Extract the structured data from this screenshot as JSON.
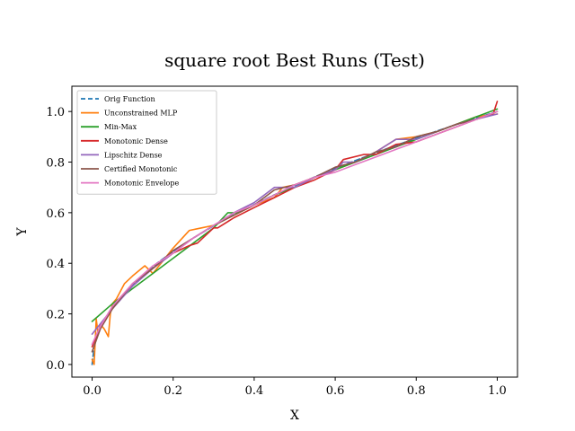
{
  "chart_data": {
    "type": "line",
    "title": "square root Best Runs (Test)",
    "xlabel": "X",
    "ylabel": "Y",
    "xlim": [
      -0.05,
      1.05
    ],
    "ylim": [
      -0.05,
      1.1
    ],
    "xticks": [
      0.0,
      0.2,
      0.4,
      0.6,
      0.8,
      1.0
    ],
    "yticks": [
      0.0,
      0.2,
      0.4,
      0.6,
      0.8,
      1.0
    ],
    "xtick_labels": [
      "0.0",
      "0.2",
      "0.4",
      "0.6",
      "0.8",
      "1.0"
    ],
    "ytick_labels": [
      "0.0",
      "0.2",
      "0.4",
      "0.6",
      "0.8",
      "1.0"
    ],
    "grid": false,
    "legend_position": "upper-left",
    "series": [
      {
        "name": "Orig Function",
        "color": "#1f77b4",
        "dashed": true,
        "x": [
          0,
          0.005,
          0.01,
          0.02,
          0.03,
          0.04,
          0.06,
          0.08,
          0.1,
          0.13,
          0.16,
          0.2,
          0.25,
          0.3,
          0.35,
          0.4,
          0.45,
          0.5,
          0.55,
          0.6,
          0.65,
          0.7,
          0.75,
          0.8,
          0.85,
          0.9,
          0.95,
          1.0
        ],
        "y": [
          0.0,
          0.071,
          0.1,
          0.141,
          0.173,
          0.2,
          0.245,
          0.283,
          0.316,
          0.361,
          0.4,
          0.447,
          0.5,
          0.548,
          0.592,
          0.632,
          0.671,
          0.707,
          0.742,
          0.775,
          0.806,
          0.837,
          0.866,
          0.894,
          0.922,
          0.949,
          0.975,
          1.0
        ]
      },
      {
        "name": "Unconstrained MLP",
        "color": "#ff7f0e",
        "dashed": false,
        "x": [
          0,
          0.005,
          0.01,
          0.015,
          0.02,
          0.03,
          0.04,
          0.045,
          0.05,
          0.06,
          0.08,
          0.1,
          0.13,
          0.15,
          0.17,
          0.2,
          0.24,
          0.27,
          0.3,
          0.35,
          0.4,
          0.45,
          0.47,
          0.5,
          0.55,
          0.6,
          0.65,
          0.7,
          0.75,
          0.8,
          0.85,
          0.9,
          0.95,
          1.0
        ],
        "y": [
          0.02,
          0.0,
          0.18,
          0.12,
          0.16,
          0.14,
          0.11,
          0.2,
          0.24,
          0.26,
          0.32,
          0.35,
          0.39,
          0.36,
          0.4,
          0.46,
          0.53,
          0.54,
          0.55,
          0.59,
          0.63,
          0.66,
          0.7,
          0.71,
          0.74,
          0.77,
          0.8,
          0.84,
          0.89,
          0.9,
          0.92,
          0.95,
          0.98,
          0.99
        ]
      },
      {
        "name": "Min-Max",
        "color": "#2ca02c",
        "dashed": false,
        "x": [
          0,
          0.05,
          0.1,
          0.15,
          0.2,
          0.25,
          0.3,
          0.335,
          0.36,
          0.4,
          0.45,
          0.5,
          0.55,
          0.6,
          0.65,
          0.7,
          0.75,
          0.8,
          0.85,
          0.9,
          0.95,
          1.0
        ],
        "y": [
          0.17,
          0.24,
          0.3,
          0.36,
          0.42,
          0.48,
          0.54,
          0.6,
          0.6,
          0.63,
          0.67,
          0.7,
          0.74,
          0.77,
          0.8,
          0.83,
          0.86,
          0.89,
          0.92,
          0.95,
          0.98,
          1.01
        ]
      },
      {
        "name": "Monotonic Dense",
        "color": "#d62728",
        "dashed": false,
        "x": [
          0,
          0.02,
          0.05,
          0.1,
          0.15,
          0.2,
          0.24,
          0.26,
          0.3,
          0.31,
          0.35,
          0.4,
          0.45,
          0.5,
          0.55,
          0.6,
          0.62,
          0.67,
          0.7,
          0.75,
          0.8,
          0.85,
          0.9,
          0.95,
          0.99,
          1.0
        ],
        "y": [
          0.07,
          0.15,
          0.22,
          0.32,
          0.38,
          0.44,
          0.47,
          0.48,
          0.54,
          0.54,
          0.58,
          0.62,
          0.66,
          0.7,
          0.73,
          0.77,
          0.81,
          0.83,
          0.83,
          0.87,
          0.88,
          0.91,
          0.94,
          0.97,
          0.99,
          1.04
        ]
      },
      {
        "name": "Lipschitz Dense",
        "color": "#9467bd",
        "dashed": false,
        "x": [
          0,
          0.05,
          0.1,
          0.15,
          0.2,
          0.25,
          0.3,
          0.35,
          0.4,
          0.45,
          0.5,
          0.55,
          0.6,
          0.62,
          0.65,
          0.7,
          0.75,
          0.8,
          0.85,
          0.9,
          0.95,
          1.0
        ],
        "y": [
          0.12,
          0.22,
          0.31,
          0.38,
          0.44,
          0.5,
          0.55,
          0.6,
          0.64,
          0.7,
          0.7,
          0.74,
          0.77,
          0.8,
          0.8,
          0.84,
          0.89,
          0.89,
          0.92,
          0.95,
          0.97,
          0.99
        ]
      },
      {
        "name": "Certified Monotonic",
        "color": "#8c564b",
        "dashed": false,
        "x": [
          0,
          0.02,
          0.05,
          0.1,
          0.15,
          0.2,
          0.25,
          0.3,
          0.35,
          0.4,
          0.45,
          0.5,
          0.55,
          0.6,
          0.65,
          0.7,
          0.75,
          0.8,
          0.85,
          0.9,
          0.95,
          1.0
        ],
        "y": [
          0.05,
          0.14,
          0.22,
          0.32,
          0.38,
          0.45,
          0.5,
          0.55,
          0.59,
          0.63,
          0.69,
          0.71,
          0.74,
          0.78,
          0.8,
          0.84,
          0.86,
          0.9,
          0.92,
          0.95,
          0.97,
          1.0
        ]
      },
      {
        "name": "Monotonic Envelope",
        "color": "#e377c2",
        "dashed": false,
        "x": [
          0,
          0.02,
          0.05,
          0.1,
          0.15,
          0.2,
          0.25,
          0.3,
          0.35,
          0.4,
          0.45,
          0.5,
          0.55,
          0.6,
          0.65,
          0.7,
          0.75,
          0.8,
          0.85,
          0.9,
          0.95,
          1.0
        ],
        "y": [
          0.08,
          0.15,
          0.23,
          0.32,
          0.39,
          0.44,
          0.5,
          0.55,
          0.6,
          0.63,
          0.67,
          0.71,
          0.74,
          0.76,
          0.79,
          0.82,
          0.85,
          0.88,
          0.91,
          0.94,
          0.97,
          1.0
        ]
      }
    ]
  }
}
